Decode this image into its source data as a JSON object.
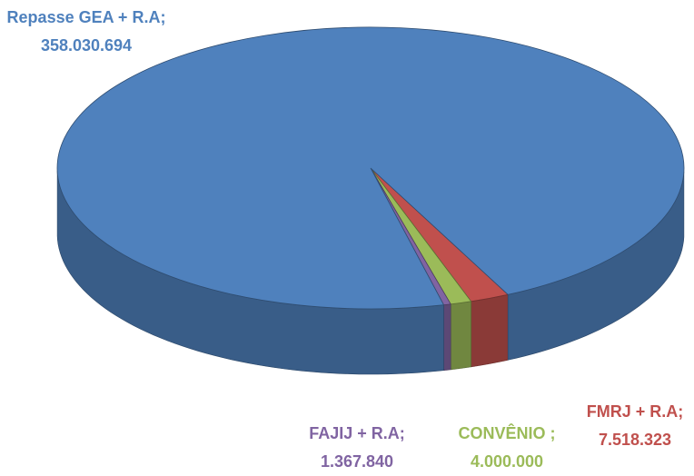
{
  "chart_data": {
    "type": "pie3d",
    "categories": [
      "Repasse GEA + R.A",
      "FMRJ + R.A",
      "CONVÊNIO",
      "FAJIJ + R.A"
    ],
    "values": [
      358030694,
      7518323,
      4000000,
      1367840
    ],
    "value_labels": [
      "358.030.694",
      "7.518.323",
      "4.000.000",
      "1.367.840"
    ],
    "label_separator": ";",
    "colors": [
      "#4f81bd",
      "#c0504d",
      "#9bbb59",
      "#8064a2"
    ]
  }
}
